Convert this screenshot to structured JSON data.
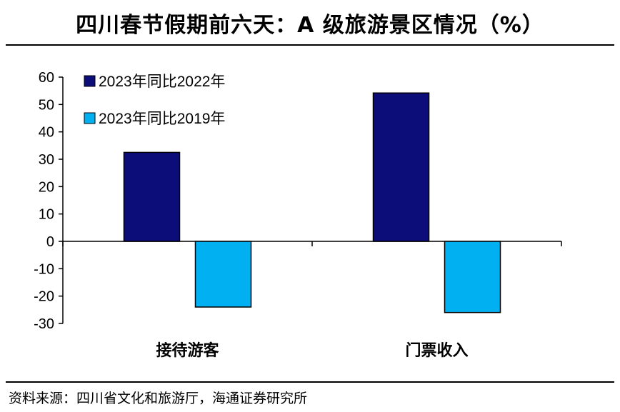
{
  "title": "四川春节假期前六天：A 级旅游景区情况（%）",
  "source": "资料来源：四川省文化和旅游厅，海通证券研究所",
  "chart_data": {
    "type": "bar",
    "categories": [
      "接待游客",
      "门票收入"
    ],
    "series": [
      {
        "name": "2023年同比2022年",
        "color": "#0d0d7a",
        "values": [
          32.5,
          54.2
        ]
      },
      {
        "name": "2023年同比2019年",
        "color": "#00b0f0",
        "values": [
          -24,
          -26
        ]
      }
    ],
    "ylim": [
      -30,
      60
    ],
    "yticks": [
      60,
      50,
      40,
      30,
      20,
      10,
      0,
      -10,
      -20,
      -30
    ],
    "grid": false,
    "legend": "top-left"
  }
}
